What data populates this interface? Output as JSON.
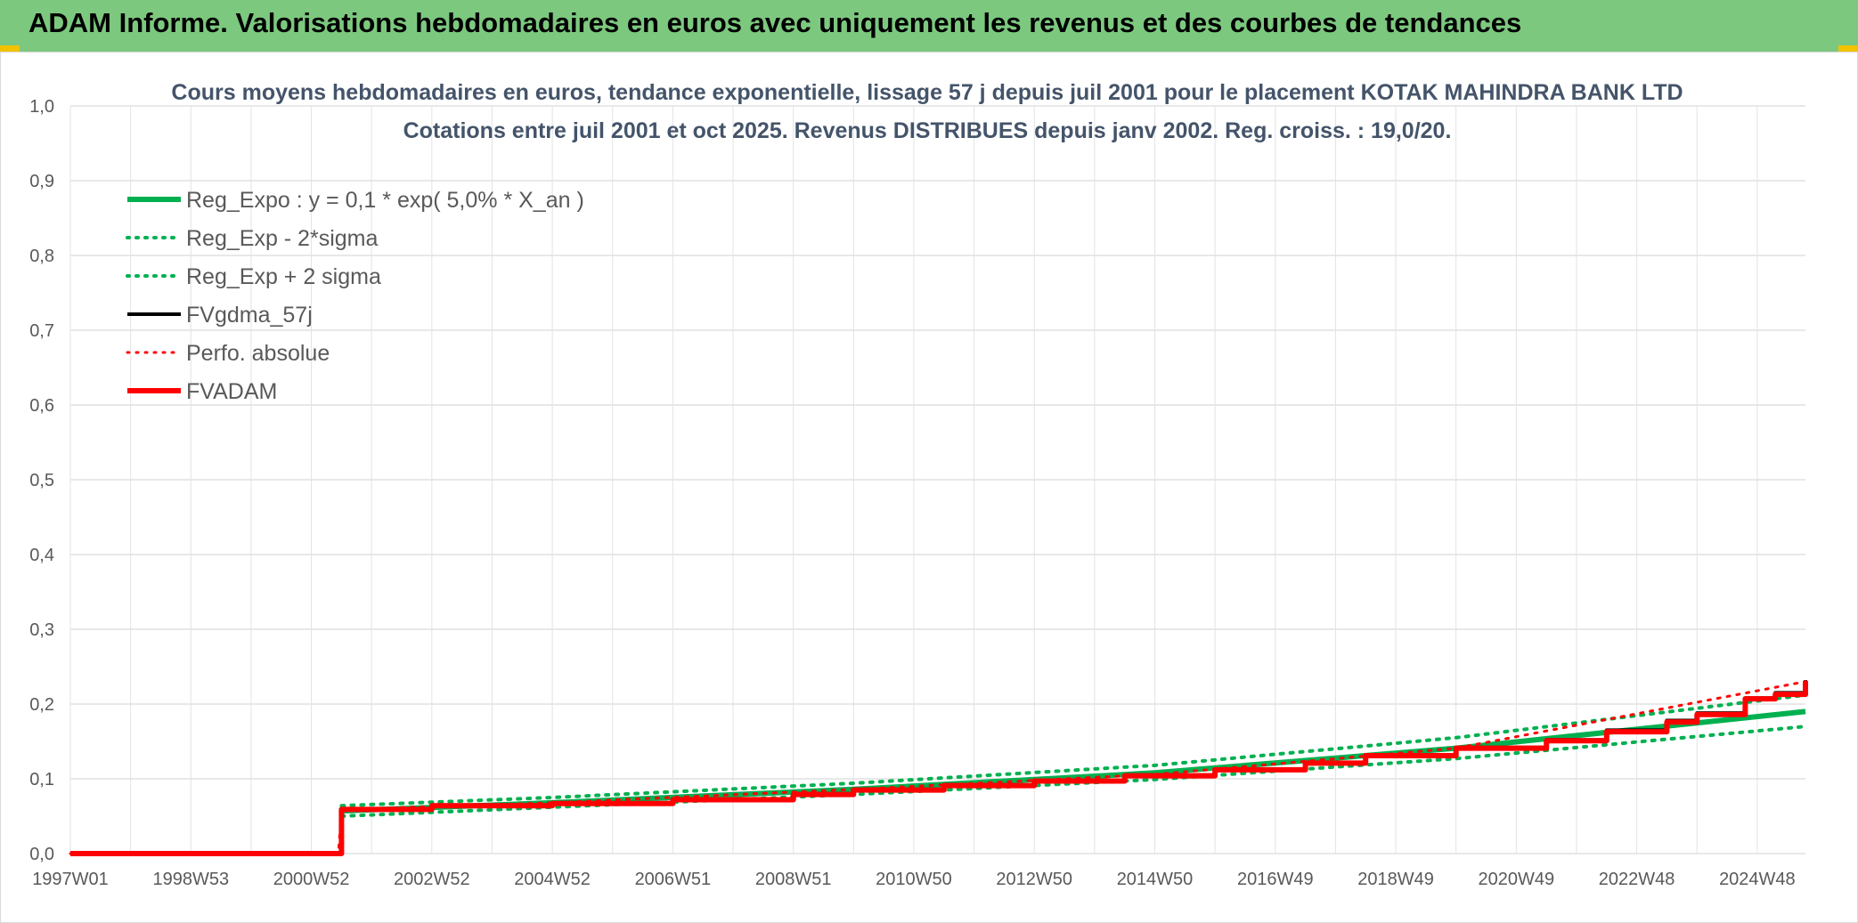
{
  "banner": {
    "title": "ADAM Informe. Valorisations hebdomadaires en euros avec uniquement les revenus et des courbes de tendances"
  },
  "colors": {
    "banner_bg": "#7dc87f",
    "reg_expo": "#00b050",
    "fvgdma": "#000000",
    "fvadam": "#ff0000",
    "corner_accent": "#f2c200"
  },
  "chart_data": {
    "type": "line",
    "title": [
      "Cours moyens hebdomadaires en euros, tendance exponentielle, lissage 57 j depuis juil 2001 pour le placement KOTAK MAHINDRA BANK LTD",
      "Cotations entre juil 2001 et oct 2025. Revenus DISTRIBUES depuis janv 2002. Reg. croiss. : 19,0/20."
    ],
    "x_tick_labels": [
      "1997W01",
      "1998W53",
      "2000W52",
      "2002W52",
      "2004W52",
      "2006W51",
      "2008W51",
      "2010W50",
      "2012W50",
      "2014W50",
      "2016W49",
      "2018W49",
      "2020W49",
      "2022W48",
      "2024W48"
    ],
    "x_range": [
      1997.0,
      2025.8
    ],
    "y_tick_labels": [
      "0,0",
      "0,1",
      "0,2",
      "0,3",
      "0,4",
      "0,5",
      "0,6",
      "0,7",
      "0,8",
      "0,9",
      "1,0"
    ],
    "ylim": [
      0,
      1.0
    ],
    "grid": true,
    "legend_position": "top-left",
    "legend": [
      {
        "label": "Reg_Expo : y = 0,1 * exp( 5,0% *  X_an )",
        "color": "#00b050",
        "style": "solid",
        "width": 6
      },
      {
        "label": "Reg_Exp - 2*sigma",
        "color": "#00b050",
        "style": "dotted",
        "width": 4
      },
      {
        "label": "Reg_Exp + 2 sigma",
        "color": "#00b050",
        "style": "dotted",
        "width": 4
      },
      {
        "label": "FVgdma_57j",
        "color": "#000000",
        "style": "solid",
        "width": 4
      },
      {
        "label": "Perfo. absolue",
        "color": "#ff0000",
        "style": "dotted",
        "width": 3
      },
      {
        "label": "FVADAM",
        "color": "#ff0000",
        "style": "solid",
        "width": 6
      }
    ],
    "series": [
      {
        "name": "Reg_Expo : y = 0,1 * exp( 5,0% *  X_an )",
        "color": "#00b050",
        "style": "solid",
        "x": [
          2001.5,
          2005.0,
          2010.0,
          2015.0,
          2020.0,
          2025.8
        ],
        "y": [
          0.057,
          0.068,
          0.086,
          0.108,
          0.141,
          0.19
        ]
      },
      {
        "name": "Reg_Exp - 2*sigma",
        "color": "#00b050",
        "style": "dotted",
        "x": [
          2001.5,
          2005.0,
          2010.0,
          2015.0,
          2020.0,
          2025.8
        ],
        "y": [
          0.05,
          0.062,
          0.079,
          0.099,
          0.127,
          0.17
        ]
      },
      {
        "name": "Reg_Exp + 2 sigma",
        "color": "#00b050",
        "style": "dotted",
        "x": [
          2001.5,
          2005.0,
          2010.0,
          2015.0,
          2020.0,
          2025.8
        ],
        "y": [
          0.064,
          0.075,
          0.094,
          0.118,
          0.155,
          0.212
        ]
      },
      {
        "name": "FVgdma_57j",
        "color": "#000000",
        "style": "solid",
        "x": [
          1997.0,
          2001.45,
          2001.5,
          2003.0,
          2005.0,
          2007.0,
          2009.0,
          2010.0,
          2011.5,
          2013.0,
          2014.5,
          2016.0,
          2017.5,
          2018.5,
          2020.0,
          2021.5,
          2022.5,
          2023.5,
          2024.0,
          2024.8,
          2025.3,
          2025.8
        ],
        "y": [
          0.0,
          0.0,
          0.06,
          0.065,
          0.068,
          0.073,
          0.08,
          0.086,
          0.092,
          0.098,
          0.105,
          0.113,
          0.122,
          0.132,
          0.142,
          0.152,
          0.165,
          0.178,
          0.188,
          0.208,
          0.215,
          0.232
        ]
      },
      {
        "name": "Perfo. absolue",
        "color": "#ff0000",
        "style": "dotted",
        "x": [
          1997.0,
          2001.45,
          2001.5,
          2005.0,
          2010.0,
          2015.0,
          2020.0,
          2025.8
        ],
        "y": [
          0.0,
          0.0,
          0.059,
          0.068,
          0.086,
          0.106,
          0.141,
          0.23
        ]
      },
      {
        "name": "FVADAM",
        "color": "#ff0000",
        "style": "solid",
        "x": [
          1997.0,
          2001.45,
          2001.5,
          2003.0,
          2005.0,
          2007.0,
          2009.0,
          2010.0,
          2011.5,
          2013.0,
          2014.5,
          2016.0,
          2017.5,
          2018.5,
          2020.0,
          2021.5,
          2022.5,
          2023.5,
          2024.0,
          2024.8,
          2025.3,
          2025.8
        ],
        "y": [
          0.0,
          0.0,
          0.059,
          0.064,
          0.067,
          0.072,
          0.079,
          0.085,
          0.091,
          0.097,
          0.104,
          0.112,
          0.121,
          0.131,
          0.141,
          0.151,
          0.163,
          0.176,
          0.186,
          0.207,
          0.213,
          0.231
        ]
      }
    ]
  }
}
